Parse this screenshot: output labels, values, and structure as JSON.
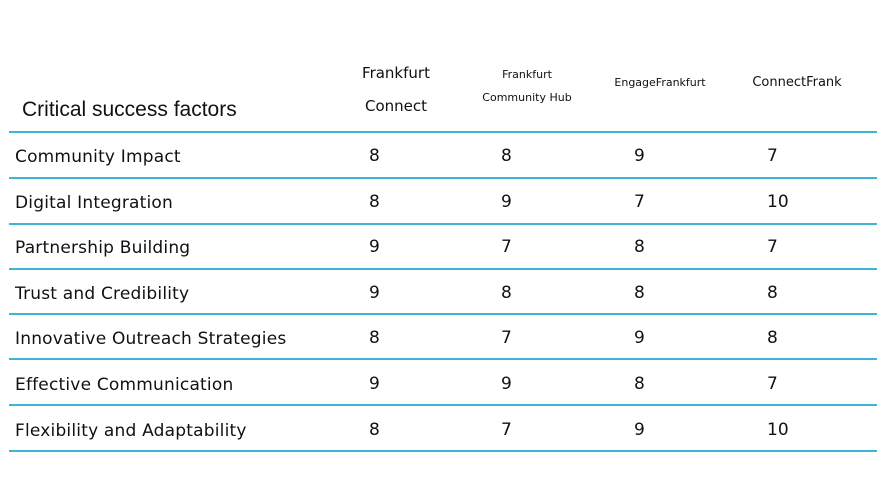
{
  "table": {
    "title": "Critical success factors",
    "columns": [
      {
        "line1": "Frankfurt",
        "line2": "Connect"
      },
      {
        "line1": "Frankfurt",
        "line2": "Community Hub"
      },
      {
        "line1": "EngageFrankfurt",
        "line2": ""
      },
      {
        "line1": "ConnectFrank",
        "line2": ""
      }
    ],
    "rows": [
      {
        "label": "Community Impact",
        "values": [
          "8",
          "8",
          "9",
          "7"
        ]
      },
      {
        "label": "Digital Integration",
        "values": [
          "8",
          "9",
          "7",
          "10"
        ]
      },
      {
        "label": "Partnership Building",
        "values": [
          "9",
          "7",
          "8",
          "7"
        ]
      },
      {
        "label": "Trust and Credibility",
        "values": [
          "9",
          "8",
          "8",
          "8"
        ]
      },
      {
        "label": "Innovative Outreach Strategies",
        "values": [
          "8",
          "7",
          "9",
          "8"
        ]
      },
      {
        "label": "Effective Communication",
        "values": [
          "9",
          "9",
          "8",
          "7"
        ]
      },
      {
        "label": "Flexibility and Adaptability",
        "values": [
          "8",
          "7",
          "9",
          "10"
        ]
      }
    ],
    "line_color": "#3db4d8"
  }
}
